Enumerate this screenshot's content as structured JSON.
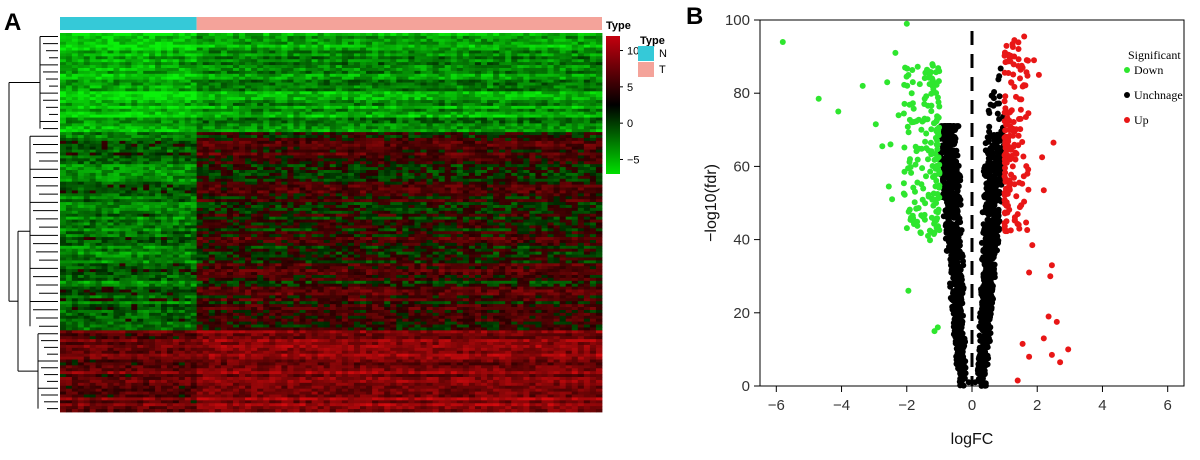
{
  "figure": {
    "panels": [
      "A",
      "B"
    ]
  },
  "chart_data": [
    {
      "type": "heatmap",
      "panel": "A",
      "annotation_title": "Type",
      "groups": [
        {
          "name": "N",
          "color": "#35c9d8",
          "samples": 59
        },
        {
          "name": "T",
          "color": "#f4a39a",
          "samples": 175
        }
      ],
      "colorbar": {
        "ticks": [
          10,
          5,
          0,
          -5
        ],
        "range": [
          -7,
          12
        ],
        "colors": [
          "#00e000",
          "#000000",
          "#c4000e"
        ]
      },
      "row_blocks": [
        {
          "pattern": "normal_high",
          "rows": 34
        },
        {
          "pattern": "tumor_high",
          "rows": 68
        },
        {
          "pattern": "both_high",
          "rows": 28
        }
      ],
      "grid": false
    },
    {
      "type": "scatter",
      "panel": "B",
      "xlabel": "logFC",
      "ylabel": "−log10(fdr)",
      "xlim": [
        -6.5,
        6.5
      ],
      "ylim": [
        0,
        100
      ],
      "xticks": [
        "−6",
        "−4",
        "−2",
        "0",
        "2",
        "4",
        "6"
      ],
      "yticks": [
        "0",
        "20",
        "40",
        "60",
        "80",
        "100"
      ],
      "vline_x": 0,
      "grid": false,
      "legend": {
        "title": "Significant",
        "position": "right",
        "entries": [
          "Down",
          "Unchnage",
          "Up"
        ]
      },
      "series": [
        {
          "name": "Down",
          "color": "#2ee62e",
          "points": [
            [
              -5.8,
              94
            ],
            [
              -4.7,
              78.5
            ],
            [
              -4.1,
              75
            ],
            [
              -3.35,
              82
            ],
            [
              -2.95,
              71.5
            ],
            [
              -2.75,
              65.5
            ],
            [
              -2.55,
              54.5
            ],
            [
              -2.45,
              51
            ],
            [
              -2.35,
              91
            ],
            [
              -2.05,
              87
            ],
            [
              -2.0,
              99
            ],
            [
              -1.95,
              26
            ],
            [
              -1.85,
              80
            ],
            [
              -1.6,
              82.5
            ],
            [
              -1.45,
              78.5
            ],
            [
              -1.3,
              85
            ],
            [
              -1.2,
              87.5
            ],
            [
              -1.4,
              65
            ],
            [
              -1.55,
              70
            ],
            [
              -1.7,
              48.5
            ],
            [
              -1.35,
              41
            ],
            [
              -1.15,
              15
            ],
            [
              -1.05,
              16
            ],
            [
              -1.0,
              58
            ],
            [
              -2.5,
              66
            ],
            [
              -2.6,
              83
            ],
            [
              -2.25,
              74
            ],
            [
              -1.8,
              45
            ],
            [
              -1.9,
              62
            ],
            [
              -1.1,
              50
            ]
          ]
        },
        {
          "name": "Unchnage",
          "color": "#000000",
          "points": [
            [
              -0.9,
              55
            ],
            [
              -0.8,
              48
            ],
            [
              -0.7,
              40
            ],
            [
              -0.6,
              32
            ],
            [
              -0.5,
              25
            ],
            [
              -0.4,
              18
            ],
            [
              -0.3,
              10
            ],
            [
              -0.2,
              5
            ],
            [
              0.2,
              5
            ],
            [
              0.3,
              10
            ],
            [
              0.4,
              18
            ],
            [
              0.5,
              25
            ],
            [
              0.6,
              32
            ],
            [
              0.7,
              40
            ],
            [
              0.8,
              48
            ],
            [
              0.9,
              55
            ],
            [
              -0.95,
              70
            ],
            [
              0.95,
              70
            ],
            [
              -0.85,
              62
            ],
            [
              0.85,
              62
            ],
            [
              0.1,
              1
            ],
            [
              -0.1,
              1
            ]
          ]
        },
        {
          "name": "Up",
          "color": "#e81616",
          "points": [
            [
              1.6,
              95.5
            ],
            [
              1.3,
              94.5
            ],
            [
              1.9,
              89
            ],
            [
              2.05,
              85
            ],
            [
              1.55,
              87
            ],
            [
              2.15,
              62.5
            ],
            [
              2.5,
              66.5
            ],
            [
              2.45,
              33
            ],
            [
              2.4,
              30
            ],
            [
              2.35,
              19
            ],
            [
              2.45,
              8.5
            ],
            [
              2.7,
              6.5
            ],
            [
              2.95,
              10
            ],
            [
              2.6,
              17.5
            ],
            [
              2.2,
              13
            ],
            [
              1.75,
              8
            ],
            [
              1.55,
              11.5
            ],
            [
              1.85,
              38.5
            ],
            [
              1.45,
              43
            ],
            [
              1.4,
              1.5
            ],
            [
              1.7,
              58
            ],
            [
              1.5,
              75.5
            ],
            [
              1.75,
              31
            ],
            [
              2.2,
              53.5
            ],
            [
              1.2,
              83
            ],
            [
              1.35,
              79
            ],
            [
              1.3,
              69.5
            ],
            [
              1.25,
              60
            ]
          ]
        }
      ]
    }
  ]
}
